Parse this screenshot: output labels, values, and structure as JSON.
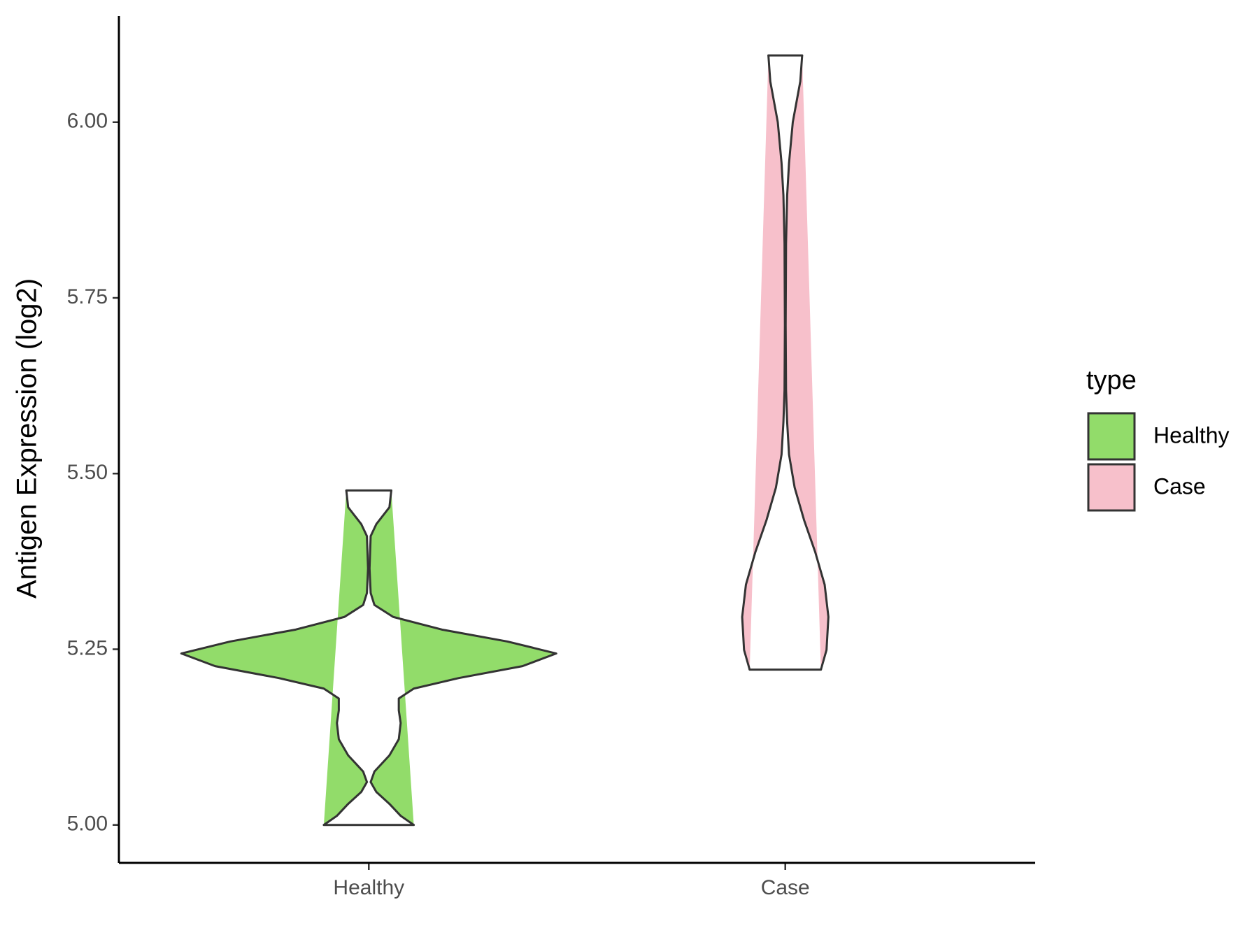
{
  "chart_data": {
    "type": "violin",
    "y_label": "Antigen Expression (log2)",
    "categories": [
      "Healthy",
      "Case"
    ],
    "legend_title": "type",
    "legend_position": "right",
    "ylim": [
      4.946,
      6.151
    ],
    "yticks": [
      {
        "value": 5,
        "label": "5.00"
      },
      {
        "value": 5.25,
        "label": "5.25"
      },
      {
        "value": 5.5,
        "label": "5.50"
      },
      {
        "value": 5.75,
        "label": "5.75"
      },
      {
        "value": 6,
        "label": "6.00"
      }
    ],
    "series": [
      {
        "name": "Healthy",
        "color": "#92dc6a",
        "y": [
          5.0,
          5.013,
          5.03,
          5.047,
          5.061,
          5.076,
          5.099,
          5.122,
          5.145,
          5.163,
          5.18,
          5.194,
          5.209,
          5.226,
          5.244,
          5.261,
          5.278,
          5.296,
          5.313,
          5.33,
          5.365,
          5.411,
          5.428,
          5.452,
          5.476
        ],
        "density": [
          0.24,
          0.17,
          0.11,
          0.04,
          0.01,
          0.03,
          0.11,
          0.16,
          0.17,
          0.16,
          0.16,
          0.24,
          0.48,
          0.82,
          1,
          0.74,
          0.39,
          0.13,
          0.03,
          0.01,
          0.004,
          0.01,
          0.04,
          0.11,
          0.12
        ]
      },
      {
        "name": "Case",
        "color": "#f7c0cb",
        "y": [
          5.221,
          5.249,
          5.296,
          5.342,
          5.388,
          5.434,
          5.48,
          5.527,
          5.573,
          5.619,
          5.711,
          5.827,
          5.896,
          5.942,
          6.0,
          6.058,
          6.095
        ],
        "density": [
          0.19,
          0.22,
          0.23,
          0.21,
          0.16,
          0.1,
          0.05,
          0.02,
          0.01,
          0.004,
          0.002,
          0.004,
          0.01,
          0.02,
          0.04,
          0.08,
          0.09
        ]
      }
    ]
  }
}
